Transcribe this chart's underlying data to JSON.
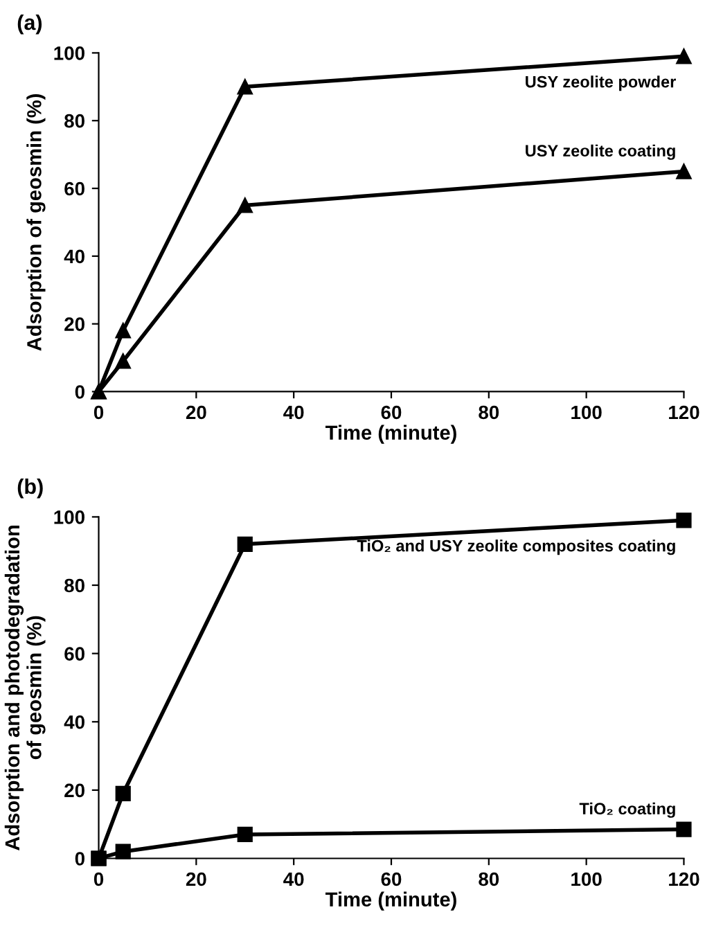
{
  "chart_data": [
    {
      "type": "line",
      "title": "(a)",
      "xlabel": "Time (minute)",
      "ylabel": "Adsorption of geosmin (%)",
      "x": [
        0,
        5,
        30,
        120
      ],
      "xlim": [
        0,
        120
      ],
      "xticks": [
        0,
        20,
        40,
        60,
        80,
        100,
        120
      ],
      "ylim": [
        0,
        100
      ],
      "yticks": [
        0,
        20,
        40,
        60,
        80,
        100
      ],
      "grid": false,
      "marker": "triangle",
      "line_style": "solid",
      "series": [
        {
          "name": "USY zeolite powder",
          "color": "#000000",
          "values": [
            0,
            18,
            90,
            99
          ]
        },
        {
          "name": "USY zeolite coating",
          "color": "#000000",
          "values": [
            0,
            9,
            55,
            65
          ]
        }
      ]
    },
    {
      "type": "line",
      "title": "(b)",
      "xlabel": "Time (minute)",
      "ylabel": "Adsorption and photodegradation\nof geosmin (%)",
      "x": [
        0,
        5,
        30,
        120
      ],
      "xlim": [
        0,
        120
      ],
      "xticks": [
        0,
        20,
        40,
        60,
        80,
        100,
        120
      ],
      "ylim": [
        0,
        100
      ],
      "yticks": [
        0,
        20,
        40,
        60,
        80,
        100
      ],
      "grid": false,
      "marker": "square",
      "line_style": "solid",
      "series": [
        {
          "name": "TiO₂ and USY zeolite composites coating",
          "color": "#000000",
          "values": [
            0,
            19,
            92,
            99
          ]
        },
        {
          "name": "TiO₂ coating",
          "color": "#000000",
          "values": [
            0,
            2,
            7,
            8.5
          ]
        }
      ]
    }
  ]
}
